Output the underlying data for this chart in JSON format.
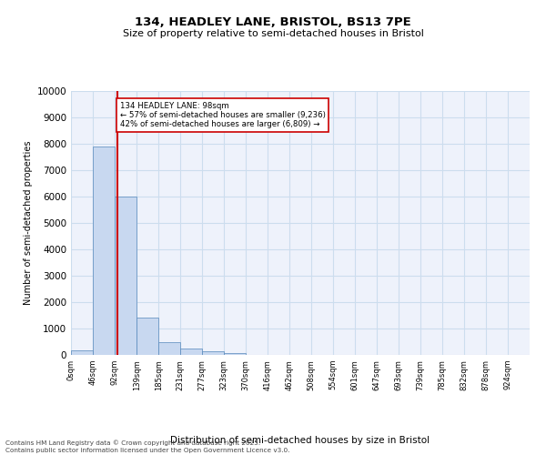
{
  "title_line1": "134, HEADLEY LANE, BRISTOL, BS13 7PE",
  "title_line2": "Size of property relative to semi-detached houses in Bristol",
  "xlabel": "Distribution of semi-detached houses by size in Bristol",
  "ylabel": "Number of semi-detached properties",
  "bar_color": "#c8d8f0",
  "bar_edge_color": "#5588bb",
  "bins_start": [
    0,
    46,
    92,
    139,
    185,
    231,
    277,
    323,
    370,
    416,
    462,
    508,
    554,
    601,
    647,
    693,
    739,
    785,
    832,
    878
  ],
  "bin_labels": [
    "0sqm",
    "46sqm",
    "92sqm",
    "139sqm",
    "185sqm",
    "231sqm",
    "277sqm",
    "323sqm",
    "370sqm",
    "416sqm",
    "462sqm",
    "508sqm",
    "554sqm",
    "601sqm",
    "647sqm",
    "693sqm",
    "739sqm",
    "785sqm",
    "832sqm",
    "878sqm",
    "924sqm"
  ],
  "values": [
    180,
    7900,
    6000,
    1400,
    500,
    230,
    150,
    70,
    0,
    0,
    0,
    0,
    0,
    0,
    0,
    0,
    0,
    0,
    0,
    0
  ],
  "ylim": [
    0,
    10000
  ],
  "yticks": [
    0,
    1000,
    2000,
    3000,
    4000,
    5000,
    6000,
    7000,
    8000,
    9000,
    10000
  ],
  "property_size": 98,
  "property_label": "134 HEADLEY LANE: 98sqm",
  "pct_smaller": 57,
  "pct_larger": 42,
  "n_smaller": 9236,
  "n_larger": 6809,
  "vline_color": "#cc0000",
  "annotation_box_color": "#cc0000",
  "grid_color": "#ccddee",
  "background_color": "#eef2fb",
  "footer_line1": "Contains HM Land Registry data © Crown copyright and database right 2025.",
  "footer_line2": "Contains public sector information licensed under the Open Government Licence v3.0."
}
